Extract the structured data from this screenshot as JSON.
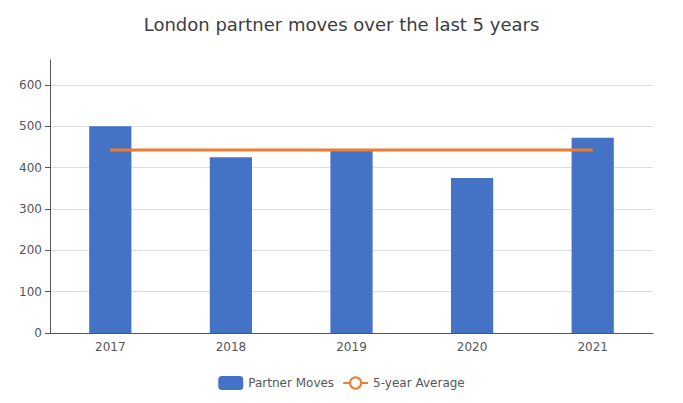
{
  "chart_data": {
    "type": "bar",
    "title": "London partner moves over the last 5 years",
    "categories": [
      "2017",
      "2018",
      "2019",
      "2020",
      "2021"
    ],
    "series": [
      {
        "name": "Partner Moves",
        "type": "bar",
        "color": "#4472C4",
        "values": [
          500,
          425,
          440,
          375,
          472
        ]
      },
      {
        "name": "5-year Average",
        "type": "line",
        "color": "#ED7D31",
        "values": [
          442.4,
          442.4,
          442.4,
          442.4,
          442.4
        ]
      }
    ],
    "ylim": [
      0,
      660
    ],
    "yticks": [
      0,
      100,
      200,
      300,
      400,
      500,
      600
    ],
    "grid": true,
    "legend": "bottom"
  }
}
